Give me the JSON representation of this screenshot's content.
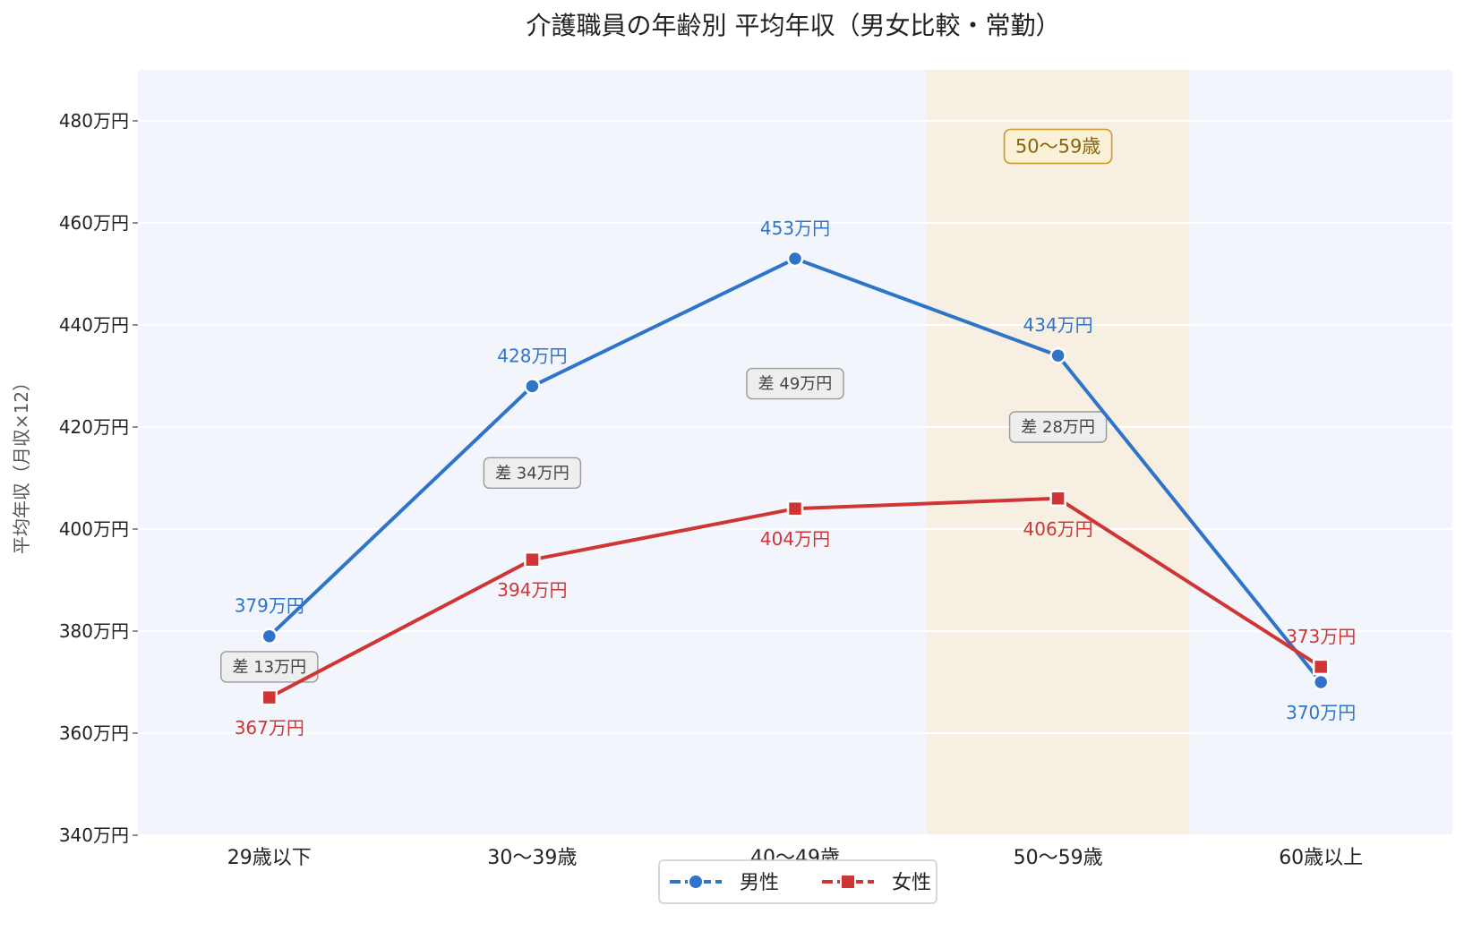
{
  "chart_data": {
    "type": "line",
    "title": "介護職員の年齢別 平均年収（男女比較・常勤）",
    "ylabel": "平均年収（月収×12）",
    "ylim": [
      340,
      490
    ],
    "yticks": [
      340,
      360,
      380,
      400,
      420,
      440,
      460,
      480
    ],
    "ytick_labels": [
      "340万円",
      "360万円",
      "380万円",
      "400万円",
      "420万円",
      "440万円",
      "460万円",
      "480万円"
    ],
    "categories": [
      "29歳以下",
      "30〜39歳",
      "40〜49歳",
      "50〜59歳",
      "60歳以上"
    ],
    "grid": true,
    "legend_position": "bottom-center",
    "highlight": {
      "category": "50〜59歳",
      "label": "50〜59歳",
      "color": "#f6efe2"
    },
    "series": [
      {
        "name": "男性",
        "values": [
          379,
          428,
          453,
          434,
          370
        ],
        "labels": [
          "379万円",
          "428万円",
          "453万円",
          "434万円",
          "370万円"
        ],
        "color": "#2e74c9",
        "marker": "circle"
      },
      {
        "name": "女性",
        "values": [
          367,
          394,
          404,
          406,
          373
        ],
        "labels": [
          "367万円",
          "394万円",
          "404万円",
          "406万円",
          "373万円"
        ],
        "color": "#d03535",
        "marker": "square"
      }
    ],
    "differences": [
      {
        "category": "29歳以下",
        "label": "差 13万円",
        "value": 373
      },
      {
        "category": "30〜39歳",
        "label": "差 34万円",
        "value": 411
      },
      {
        "category": "40〜49歳",
        "label": "差 49万円",
        "value": 428.5
      },
      {
        "category": "50〜59歳",
        "label": "差 28万円",
        "value": 420
      }
    ],
    "plot_background": "#f3f5fc"
  }
}
